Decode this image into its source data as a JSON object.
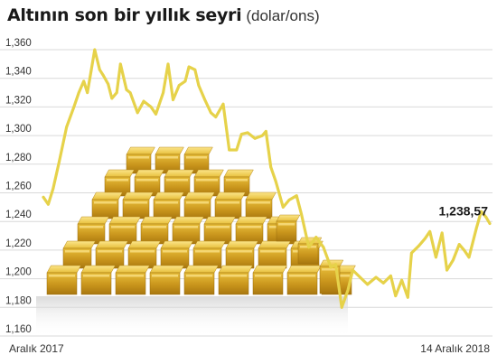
{
  "chart_data": {
    "type": "line",
    "title": "Altının son bir yıllık seyri",
    "unit": "(dolar/ons)",
    "ylim": [
      1160,
      1372
    ],
    "yticks": [
      "1,360",
      "1,340",
      "1,320",
      "1,300",
      "1,280",
      "1,260",
      "1,240",
      "1,220",
      "1,200",
      "1,180",
      "1,160"
    ],
    "ytick_values": [
      1360,
      1340,
      1320,
      1300,
      1280,
      1260,
      1240,
      1220,
      1200,
      1180,
      1160
    ],
    "xlabels": {
      "start": "Aralık 2017",
      "end": "14 Aralık 2018"
    },
    "x_range": [
      "2017-12-14",
      "2018-12-14"
    ],
    "grid": true,
    "series": [
      {
        "values": [
          {
            "x": "2017-12-14",
            "y": 1257
          },
          {
            "x": "2017-12-18",
            "y": 1252
          },
          {
            "x": "2017-12-22",
            "y": 1263
          },
          {
            "x": "2017-12-27",
            "y": 1282
          },
          {
            "x": "2018-01-02",
            "y": 1306
          },
          {
            "x": "2018-01-08",
            "y": 1320
          },
          {
            "x": "2018-01-12",
            "y": 1330
          },
          {
            "x": "2018-01-16",
            "y": 1338
          },
          {
            "x": "2018-01-19",
            "y": 1330
          },
          {
            "x": "2018-01-22",
            "y": 1345
          },
          {
            "x": "2018-01-25",
            "y": 1360
          },
          {
            "x": "2018-01-29",
            "y": 1346
          },
          {
            "x": "2018-02-01",
            "y": 1342
          },
          {
            "x": "2018-02-05",
            "y": 1336
          },
          {
            "x": "2018-02-08",
            "y": 1326
          },
          {
            "x": "2018-02-12",
            "y": 1330
          },
          {
            "x": "2018-02-15",
            "y": 1350
          },
          {
            "x": "2018-02-20",
            "y": 1332
          },
          {
            "x": "2018-02-23",
            "y": 1330
          },
          {
            "x": "2018-03-01",
            "y": 1316
          },
          {
            "x": "2018-03-06",
            "y": 1324
          },
          {
            "x": "2018-03-12",
            "y": 1320
          },
          {
            "x": "2018-03-16",
            "y": 1315
          },
          {
            "x": "2018-03-22",
            "y": 1330
          },
          {
            "x": "2018-03-26",
            "y": 1350
          },
          {
            "x": "2018-03-30",
            "y": 1325
          },
          {
            "x": "2018-04-04",
            "y": 1335
          },
          {
            "x": "2018-04-09",
            "y": 1338
          },
          {
            "x": "2018-04-12",
            "y": 1348
          },
          {
            "x": "2018-04-17",
            "y": 1346
          },
          {
            "x": "2018-04-20",
            "y": 1335
          },
          {
            "x": "2018-04-25",
            "y": 1325
          },
          {
            "x": "2018-04-30",
            "y": 1316
          },
          {
            "x": "2018-05-04",
            "y": 1313
          },
          {
            "x": "2018-05-10",
            "y": 1322
          },
          {
            "x": "2018-05-15",
            "y": 1290
          },
          {
            "x": "2018-05-21",
            "y": 1290
          },
          {
            "x": "2018-05-25",
            "y": 1301
          },
          {
            "x": "2018-05-30",
            "y": 1302
          },
          {
            "x": "2018-06-05",
            "y": 1298
          },
          {
            "x": "2018-06-11",
            "y": 1300
          },
          {
            "x": "2018-06-14",
            "y": 1303
          },
          {
            "x": "2018-06-18",
            "y": 1278
          },
          {
            "x": "2018-06-22",
            "y": 1268
          },
          {
            "x": "2018-06-28",
            "y": 1250
          },
          {
            "x": "2018-07-03",
            "y": 1255
          },
          {
            "x": "2018-07-09",
            "y": 1258
          },
          {
            "x": "2018-07-13",
            "y": 1245
          },
          {
            "x": "2018-07-19",
            "y": 1222
          },
          {
            "x": "2018-07-25",
            "y": 1229
          },
          {
            "x": "2018-07-31",
            "y": 1222
          },
          {
            "x": "2018-08-06",
            "y": 1208
          },
          {
            "x": "2018-08-10",
            "y": 1210
          },
          {
            "x": "2018-08-15",
            "y": 1180
          },
          {
            "x": "2018-08-20",
            "y": 1192
          },
          {
            "x": "2018-08-24",
            "y": 1206
          },
          {
            "x": "2018-08-30",
            "y": 1201
          },
          {
            "x": "2018-09-05",
            "y": 1196
          },
          {
            "x": "2018-09-12",
            "y": 1201
          },
          {
            "x": "2018-09-18",
            "y": 1197
          },
          {
            "x": "2018-09-24",
            "y": 1202
          },
          {
            "x": "2018-09-28",
            "y": 1188
          },
          {
            "x": "2018-10-03",
            "y": 1199
          },
          {
            "x": "2018-10-08",
            "y": 1187
          },
          {
            "x": "2018-10-11",
            "y": 1218
          },
          {
            "x": "2018-10-17",
            "y": 1223
          },
          {
            "x": "2018-10-22",
            "y": 1228
          },
          {
            "x": "2018-10-26",
            "y": 1233
          },
          {
            "x": "2018-10-31",
            "y": 1215
          },
          {
            "x": "2018-11-05",
            "y": 1232
          },
          {
            "x": "2018-11-09",
            "y": 1206
          },
          {
            "x": "2018-11-14",
            "y": 1213
          },
          {
            "x": "2018-11-19",
            "y": 1224
          },
          {
            "x": "2018-11-23",
            "y": 1220
          },
          {
            "x": "2018-11-27",
            "y": 1215
          },
          {
            "x": "2018-12-03",
            "y": 1235
          },
          {
            "x": "2018-12-07",
            "y": 1247
          },
          {
            "x": "2018-12-11",
            "y": 1243
          },
          {
            "x": "2018-12-14",
            "y": 1238.57
          }
        ]
      }
    ],
    "annotations": [
      {
        "text": "1,238,57",
        "x": "2018-12-14",
        "y": 1238.57
      }
    ]
  },
  "colors": {
    "line": "#e6d24a",
    "grid": "#d9d9d9",
    "text": "#333333",
    "gold_light": "#f6d86a",
    "gold_mid": "#d9ac2c",
    "gold_dark": "#a67a12"
  }
}
